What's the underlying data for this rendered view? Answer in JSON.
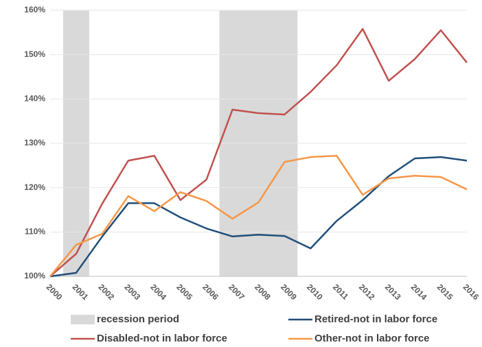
{
  "chart_data": {
    "type": "line",
    "categories": [
      "2000",
      "2001",
      "2002",
      "2003",
      "2004",
      "2005",
      "2006",
      "2007",
      "2008",
      "2009",
      "2010",
      "2011",
      "2012",
      "2013",
      "2014",
      "2015",
      "2016"
    ],
    "series": [
      {
        "name": "Retired-not in labor force",
        "color": "#1f4e79",
        "values": [
          100,
          100.8,
          109,
          116.5,
          116.5,
          113.3,
          110.8,
          109,
          109.4,
          109.1,
          106.3,
          112.5,
          117.2,
          122.6,
          126.6,
          126.9,
          126.1
        ]
      },
      {
        "name": "Disabled-not in labor force",
        "color": "#c0504d",
        "values": [
          100,
          105.1,
          116.4,
          126.1,
          127.2,
          117.2,
          121.8,
          137.6,
          136.8,
          136.5,
          141.6,
          147.6,
          155.8,
          144.1,
          149,
          155.5,
          148.2
        ]
      },
      {
        "name": "Other-not in labor force",
        "color": "#f79646",
        "values": [
          100,
          107.1,
          109.6,
          118.1,
          114.7,
          119,
          117,
          113,
          116.7,
          125.8,
          126.9,
          127.2,
          118.4,
          122.1,
          122.7,
          122.4,
          119.6
        ]
      }
    ],
    "recession": {
      "name": "recession period",
      "color": "#d9d9d9",
      "spans": [
        [
          "2001",
          "2001"
        ],
        [
          "2007",
          "2009"
        ]
      ]
    },
    "ylim": [
      100,
      160
    ],
    "yticks": [
      {
        "value": 100,
        "label": "100%"
      },
      {
        "value": 110,
        "label": "110%"
      },
      {
        "value": 120,
        "label": "120%"
      },
      {
        "value": 130,
        "label": "130%"
      },
      {
        "value": 140,
        "label": "140%"
      },
      {
        "value": 150,
        "label": "150%"
      },
      {
        "value": 160,
        "label": "160%"
      }
    ],
    "grid": true
  }
}
